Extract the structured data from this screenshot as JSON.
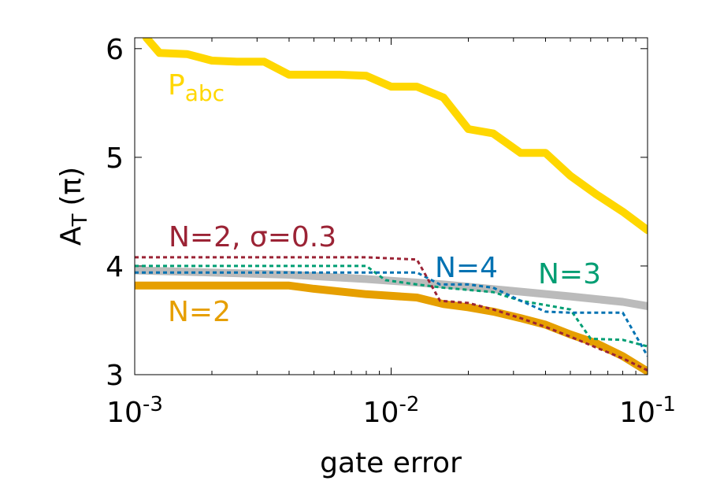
{
  "chart_data": {
    "type": "line",
    "xlabel": "gate error",
    "ylabel_main": "A",
    "ylabel_sub": "T",
    "ylabel_unit": "(π)",
    "xscale": "log",
    "xlim": [
      0.001,
      0.1
    ],
    "ylim": [
      3,
      6.1
    ],
    "x_ticks": [
      {
        "value": 0.001,
        "base": "10",
        "exp": "-3"
      },
      {
        "value": 0.01,
        "base": "10",
        "exp": "-2"
      },
      {
        "value": 0.1,
        "base": "10",
        "exp": "-1"
      }
    ],
    "y_ticks": [
      3,
      4,
      5,
      6
    ],
    "series": [
      {
        "name": "P_abc",
        "label_main": "P",
        "label_sub": "abc",
        "color": "#FFD700",
        "style": "solid",
        "width": "thick",
        "x": [
          0.00111,
          0.00125,
          0.0016,
          0.002,
          0.0025,
          0.0032,
          0.004,
          0.005,
          0.0063,
          0.008,
          0.01,
          0.0126,
          0.016,
          0.02,
          0.025,
          0.032,
          0.04,
          0.05,
          0.063,
          0.08,
          0.1
        ],
        "values": [
          6.1,
          5.96,
          5.95,
          5.89,
          5.88,
          5.88,
          5.76,
          5.76,
          5.76,
          5.75,
          5.65,
          5.65,
          5.55,
          5.26,
          5.22,
          5.04,
          5.04,
          4.83,
          4.66,
          4.5,
          4.33
        ]
      },
      {
        "name": "N=2, σ=0.3",
        "label": "N=2, σ=0.3",
        "color": "#9B2335",
        "style": "dotted",
        "width": "thin",
        "x": [
          0.001,
          0.002,
          0.005,
          0.008,
          0.0126,
          0.0155,
          0.02,
          0.025,
          0.032,
          0.04,
          0.05,
          0.063,
          0.08,
          0.1
        ],
        "values": [
          4.08,
          4.08,
          4.08,
          4.08,
          4.06,
          3.68,
          3.66,
          3.6,
          3.52,
          3.44,
          3.35,
          3.25,
          3.15,
          3.04
        ]
      },
      {
        "name": "N=4",
        "label": "N=4",
        "color": "#0072B2",
        "style": "dotted",
        "width": "thin",
        "x": [
          0.001,
          0.002,
          0.005,
          0.008,
          0.0126,
          0.0155,
          0.02,
          0.025,
          0.032,
          0.04,
          0.05,
          0.063,
          0.08,
          0.1
        ],
        "values": [
          3.94,
          3.94,
          3.94,
          3.94,
          3.94,
          3.83,
          3.83,
          3.8,
          3.68,
          3.58,
          3.57,
          3.57,
          3.57,
          3.17
        ]
      },
      {
        "name": "N=3",
        "label": "N=3",
        "color": "#009E73",
        "style": "dotted",
        "width": "thin",
        "x": [
          0.001,
          0.002,
          0.005,
          0.008,
          0.0095,
          0.0126,
          0.016,
          0.02,
          0.025,
          0.032,
          0.04,
          0.05,
          0.06,
          0.08,
          0.1
        ],
        "values": [
          4.0,
          4.0,
          4.0,
          4.0,
          3.87,
          3.83,
          3.8,
          3.78,
          3.76,
          3.68,
          3.64,
          3.6,
          3.33,
          3.32,
          3.26
        ]
      },
      {
        "name": "N=2 (gray)",
        "label": "",
        "color": "#BBBBBB",
        "style": "solid",
        "width": "thick",
        "x": [
          0.001,
          0.002,
          0.004,
          0.008,
          0.016,
          0.03,
          0.05,
          0.08,
          0.1
        ],
        "values": [
          3.96,
          3.94,
          3.92,
          3.88,
          3.83,
          3.77,
          3.72,
          3.67,
          3.63
        ]
      },
      {
        "name": "N=2",
        "label": "N=2",
        "color": "#E69F00",
        "style": "solid",
        "width": "thick",
        "x": [
          0.001,
          0.002,
          0.004,
          0.005,
          0.008,
          0.0126,
          0.016,
          0.02,
          0.025,
          0.032,
          0.04,
          0.05,
          0.063,
          0.08,
          0.1
        ],
        "values": [
          3.82,
          3.82,
          3.82,
          3.79,
          3.74,
          3.71,
          3.65,
          3.62,
          3.58,
          3.52,
          3.46,
          3.37,
          3.29,
          3.17,
          3.03
        ]
      }
    ]
  }
}
